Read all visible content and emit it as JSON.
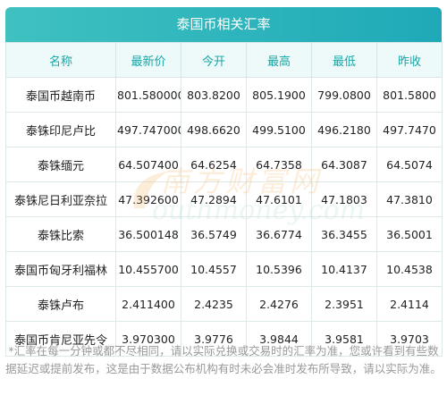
{
  "title": "泰国币相关汇率",
  "headers": [
    "名称",
    "最新价",
    "今开",
    "最高",
    "最低",
    "昨收"
  ],
  "rows": [
    {
      "name": "泰国币越南币",
      "latest": "801.580000",
      "open": "803.8200",
      "high": "805.1900",
      "low": "799.0800",
      "prev": "801.5800"
    },
    {
      "name": "泰铢印尼卢比",
      "latest": "497.747000",
      "open": "498.6620",
      "high": "499.5100",
      "low": "496.2180",
      "prev": "497.7470"
    },
    {
      "name": "泰铢缅元",
      "latest": "64.507400",
      "open": "64.6254",
      "high": "64.7358",
      "low": "64.3087",
      "prev": "64.5074"
    },
    {
      "name": "泰铢尼日利亚奈拉",
      "latest": "47.392600",
      "open": "47.2894",
      "high": "47.6101",
      "low": "47.1803",
      "prev": "47.3810"
    },
    {
      "name": "泰铢比索",
      "latest": "36.500148",
      "open": "36.5749",
      "high": "36.6774",
      "low": "36.3455",
      "prev": "36.5001"
    },
    {
      "name": "泰国币匈牙利福林",
      "latest": "10.455700",
      "open": "10.4557",
      "high": "10.5396",
      "low": "10.4137",
      "prev": "10.4538"
    },
    {
      "name": "泰铢卢布",
      "latest": "2.411400",
      "open": "2.4235",
      "high": "2.4276",
      "low": "2.3951",
      "prev": "2.4114"
    },
    {
      "name": "泰国币肯尼亚先令",
      "latest": "3.970300",
      "open": "3.9776",
      "high": "3.9844",
      "low": "3.9581",
      "prev": "3.9703"
    }
  ],
  "watermark": {
    "cn": "南方财富网",
    "en": "outhmoney.com"
  },
  "note": "*汇率在每一分钟或都不尽相同，请以实际兑换或交易时的汇率为准，您或许看到有些数据延迟或提前发布，这是由于数据公布机构有时未必会准时发布所导致，请以实际为准。",
  "colors": {
    "accent": "#1fa9b8",
    "header_text": "#16a6a6",
    "header_bg": "#eefafa"
  }
}
